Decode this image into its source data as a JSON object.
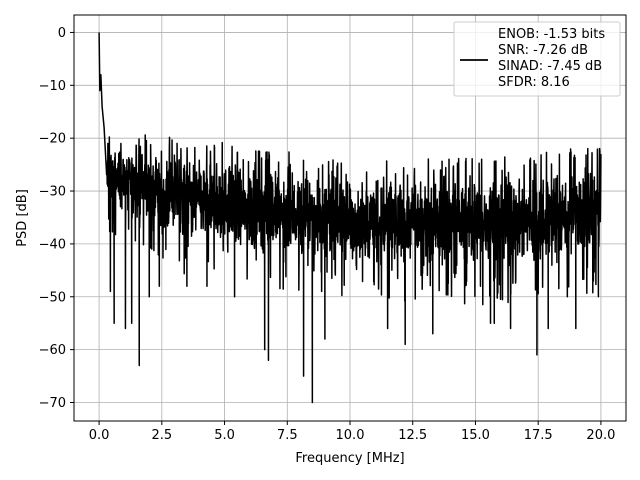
{
  "chart_data": {
    "type": "line",
    "xlabel": "Frequency [MHz]",
    "ylabel": "PSD [dB]",
    "xlim": [
      -1.0,
      21.0
    ],
    "ylim": [
      -73.5,
      3.3
    ],
    "x_ticks": [
      0.0,
      2.5,
      5.0,
      7.5,
      10.0,
      12.5,
      15.0,
      17.5,
      20.0
    ],
    "x_tick_labels": [
      "0.0",
      "2.5",
      "5.0",
      "7.5",
      "10.0",
      "12.5",
      "15.0",
      "17.5",
      "20.0"
    ],
    "y_ticks": [
      0,
      -10,
      -20,
      -30,
      -40,
      -50,
      -60,
      -70
    ],
    "y_tick_labels": [
      "0",
      "−10",
      "−20",
      "−30",
      "−40",
      "−50",
      "−60",
      "−70"
    ],
    "grid": true,
    "legend_position": "top-right",
    "legend_lines": [
      "ENOB: -1.53 bits",
      "SNR: -7.26 dB",
      "SINAD: -7.45 dB",
      "SFDR: 8.16"
    ],
    "series": [
      {
        "color": "#000000",
        "x_range": [
          0.0,
          20.0
        ],
        "peak_points": [
          [
            0.0,
            0.0
          ],
          [
            0.03,
            -11
          ],
          [
            0.07,
            -8
          ],
          [
            0.12,
            -14
          ],
          [
            0.2,
            -18
          ],
          [
            0.35,
            -21
          ],
          [
            0.45,
            -49
          ],
          [
            0.6,
            -55
          ],
          [
            1.05,
            -56
          ],
          [
            1.3,
            -55
          ],
          [
            1.6,
            -63
          ],
          [
            2.0,
            -50
          ],
          [
            2.4,
            -48
          ],
          [
            3.5,
            -48
          ],
          [
            4.3,
            -48
          ],
          [
            5.4,
            -50
          ],
          [
            6.6,
            -60
          ],
          [
            6.75,
            -62
          ],
          [
            8.15,
            -65
          ],
          [
            8.5,
            -70
          ],
          [
            9.0,
            -58
          ],
          [
            11.5,
            -56
          ],
          [
            12.2,
            -59
          ],
          [
            13.3,
            -57
          ],
          [
            15.2,
            -48
          ],
          [
            15.6,
            -55
          ],
          [
            15.75,
            -55
          ],
          [
            16.4,
            -56
          ],
          [
            17.45,
            -61
          ],
          [
            17.9,
            -56
          ],
          [
            19.0,
            -56
          ],
          [
            19.9,
            -50
          ]
        ],
        "dense_envelope": {
          "upper_typical": [
            [
              0.0,
              -21
            ],
            [
              5.0,
              -23
            ],
            [
              10.0,
              -27
            ],
            [
              15.0,
              -26
            ],
            [
              20.0,
              -24
            ]
          ],
          "lower_typical": [
            [
              0.0,
              -33
            ],
            [
              5.0,
              -43
            ],
            [
              10.0,
              -44
            ],
            [
              15.0,
              -46
            ],
            [
              20.0,
              -44
            ]
          ]
        }
      }
    ]
  }
}
